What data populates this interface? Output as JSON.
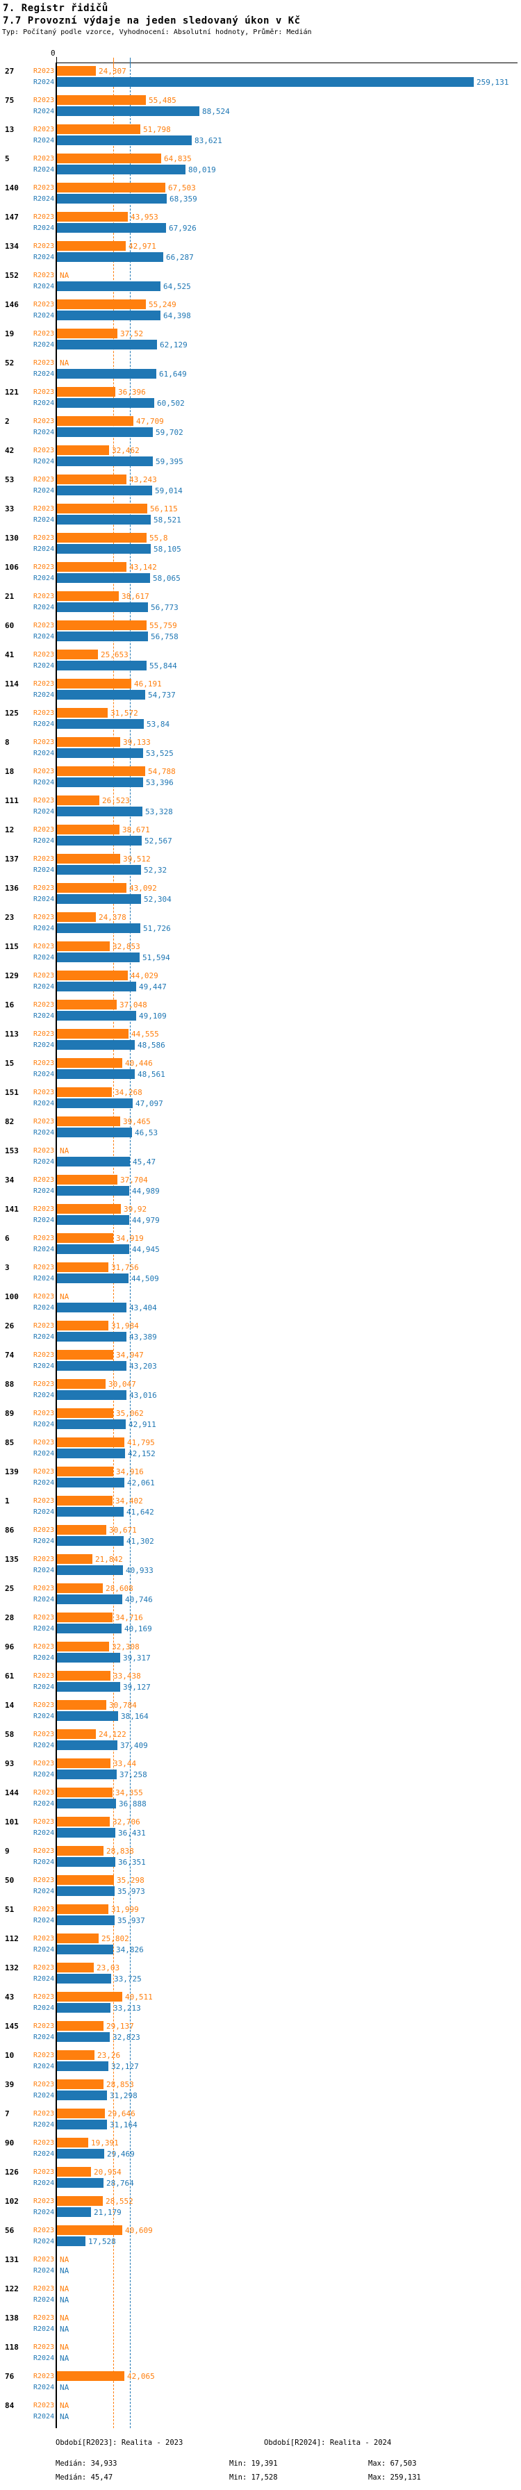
{
  "header": {
    "title": "7. Registr řidičů",
    "subtitle": "7.7 Provozní výdaje na jeden sledovaný úkon v Kč",
    "meta": "Typ: Počítaný podle vzorce, Vyhodnocení: Absolutní hodnoty, Průměr: Medián"
  },
  "axis": {
    "zero_label": "0"
  },
  "colors": {
    "r2023": "#ff7f0e",
    "r2024": "#1f77b4",
    "axis": "#000000"
  },
  "series_labels": {
    "r2023": "R2023",
    "r2024": "R2024"
  },
  "na_label": "NA",
  "footer": {
    "period_r2023": "Období[R2023]: Realita - 2023",
    "period_r2024": "Období[R2024]: Realita - 2024",
    "median_r2023": "Medián: 34,933",
    "min_r2023": "Min: 19,391",
    "max_r2023": "Max: 67,503",
    "median_r2024": "Medián: 45,47",
    "min_r2024": "Min: 17,528",
    "max_r2024": "Max: 259,131"
  },
  "chart_data": {
    "type": "bar",
    "orientation": "horizontal",
    "title": "7.7 Provozní výdaje na jeden sledovaný úkon v Kč",
    "value_unit": "Kč",
    "decimal_style": "czech-comma",
    "xlim": [
      0,
      286
    ],
    "grid": "median-guides",
    "series_names": [
      "R2023",
      "R2024"
    ],
    "medians": {
      "R2023": 34.933,
      "R2024": 45.47
    },
    "stats": {
      "R2023": {
        "median": 34.933,
        "min": 19.391,
        "max": 67.503
      },
      "R2024": {
        "median": 45.47,
        "min": 17.528,
        "max": 259.131
      }
    },
    "row_format": [
      "category",
      "R2023",
      "R2024"
    ],
    "rows": [
      [
        "27",
        24.307,
        259.131
      ],
      [
        "75",
        55.485,
        88.524
      ],
      [
        "13",
        51.798,
        83.621
      ],
      [
        "5",
        64.835,
        80.019
      ],
      [
        "140",
        67.503,
        68.359
      ],
      [
        "147",
        43.953,
        67.926
      ],
      [
        "134",
        42.971,
        66.287
      ],
      [
        "152",
        null,
        64.525
      ],
      [
        "146",
        55.249,
        64.398
      ],
      [
        "19",
        37.52,
        62.129
      ],
      [
        "52",
        null,
        61.649
      ],
      [
        "121",
        36.396,
        60.502
      ],
      [
        "2",
        47.709,
        59.702
      ],
      [
        "42",
        32.462,
        59.395
      ],
      [
        "53",
        43.243,
        59.014
      ],
      [
        "33",
        56.115,
        58.521
      ],
      [
        "130",
        55.8,
        58.105
      ],
      [
        "106",
        43.142,
        58.065
      ],
      [
        "21",
        38.617,
        56.773
      ],
      [
        "60",
        55.759,
        56.758
      ],
      [
        "41",
        25.653,
        55.844
      ],
      [
        "114",
        46.191,
        54.737
      ],
      [
        "125",
        31.572,
        53.84
      ],
      [
        "8",
        39.133,
        53.525
      ],
      [
        "18",
        54.788,
        53.396
      ],
      [
        "111",
        26.523,
        53.328
      ],
      [
        "12",
        38.671,
        52.567
      ],
      [
        "137",
        39.512,
        52.32
      ],
      [
        "136",
        43.092,
        52.304
      ],
      [
        "23",
        24.378,
        51.726
      ],
      [
        "115",
        32.853,
        51.594
      ],
      [
        "129",
        44.029,
        49.447
      ],
      [
        "16",
        37.048,
        49.109
      ],
      [
        "113",
        44.555,
        48.586
      ],
      [
        "15",
        40.446,
        48.561
      ],
      [
        "151",
        34.268,
        47.097
      ],
      [
        "82",
        39.465,
        46.53
      ],
      [
        "153",
        null,
        45.47
      ],
      [
        "34",
        37.704,
        44.989
      ],
      [
        "141",
        39.92,
        44.979
      ],
      [
        "6",
        34.919,
        44.945
      ],
      [
        "3",
        31.756,
        44.509
      ],
      [
        "100",
        null,
        43.404
      ],
      [
        "26",
        31.984,
        43.389
      ],
      [
        "74",
        34.947,
        43.203
      ],
      [
        "88",
        30.047,
        43.016
      ],
      [
        "89",
        35.062,
        42.911
      ],
      [
        "85",
        41.795,
        42.152
      ],
      [
        "139",
        34.916,
        42.061
      ],
      [
        "1",
        34.402,
        41.642
      ],
      [
        "86",
        30.671,
        41.302
      ],
      [
        "135",
        21.842,
        40.933
      ],
      [
        "25",
        28.608,
        40.746
      ],
      [
        "28",
        34.716,
        40.169
      ],
      [
        "96",
        32.308,
        39.317
      ],
      [
        "61",
        33.438,
        39.127
      ],
      [
        "14",
        30.784,
        38.164
      ],
      [
        "58",
        24.122,
        37.409
      ],
      [
        "93",
        33.44,
        37.258
      ],
      [
        "144",
        34.355,
        36.888
      ],
      [
        "101",
        32.706,
        36.431
      ],
      [
        "9",
        28.838,
        36.351
      ],
      [
        "50",
        35.298,
        35.973
      ],
      [
        "51",
        31.999,
        35.937
      ],
      [
        "112",
        25.802,
        34.826
      ],
      [
        "132",
        23.03,
        33.725
      ],
      [
        "43",
        40.511,
        33.213
      ],
      [
        "145",
        29.137,
        32.823
      ],
      [
        "10",
        23.26,
        32.127
      ],
      [
        "39",
        28.853,
        31.298
      ],
      [
        "7",
        29.646,
        31.164
      ],
      [
        "90",
        19.391,
        29.469
      ],
      [
        "126",
        20.954,
        28.764
      ],
      [
        "102",
        28.552,
        21.179
      ],
      [
        "56",
        40.609,
        17.528
      ],
      [
        "131",
        null,
        null
      ],
      [
        "122",
        null,
        null
      ],
      [
        "138",
        null,
        null
      ],
      [
        "118",
        null,
        null
      ],
      [
        "76",
        42.065,
        null
      ],
      [
        "84",
        null,
        null
      ]
    ]
  }
}
